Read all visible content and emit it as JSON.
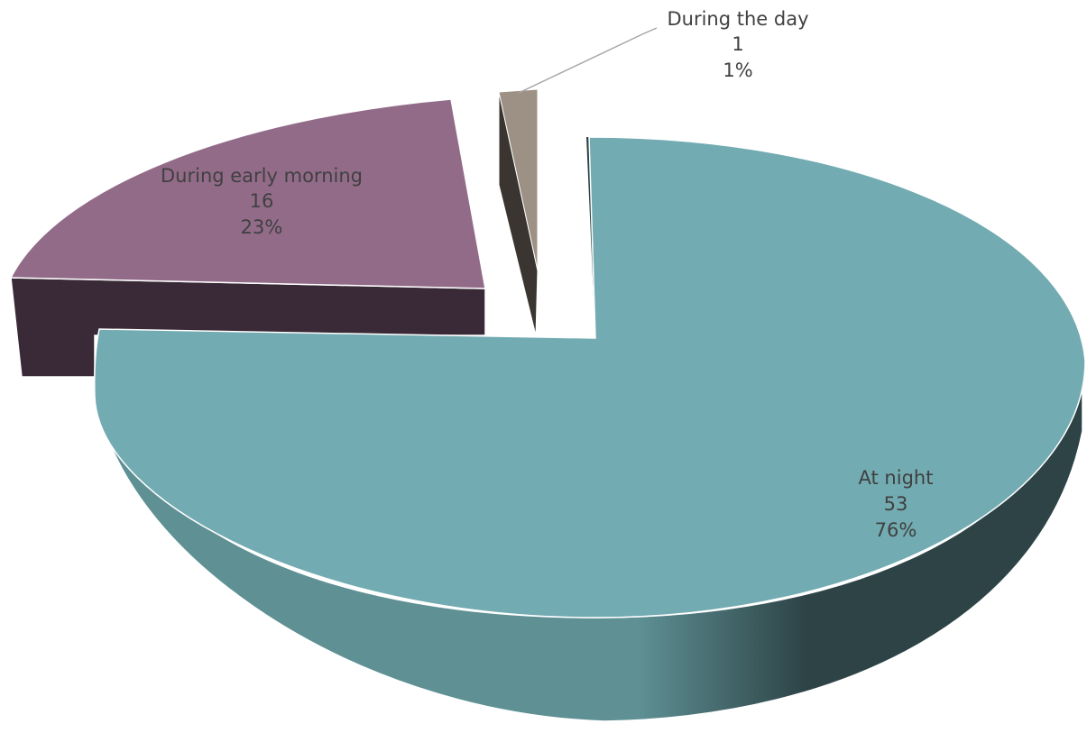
{
  "chart_data": {
    "type": "pie",
    "style": "3d-exploded",
    "series": [
      {
        "label": "At night",
        "value": 53,
        "percent": "76%",
        "color": "#72ABB1",
        "side_color": "#5E9094",
        "side_dark": "#2D4346"
      },
      {
        "label": "During early morning",
        "value": 16,
        "percent": "23%",
        "color": "#926B89",
        "side_color": "#3A2A37"
      },
      {
        "label": "During the day",
        "value": 1,
        "percent": "1%",
        "color": "#9C9184",
        "side_color": "#3A3530"
      }
    ]
  }
}
